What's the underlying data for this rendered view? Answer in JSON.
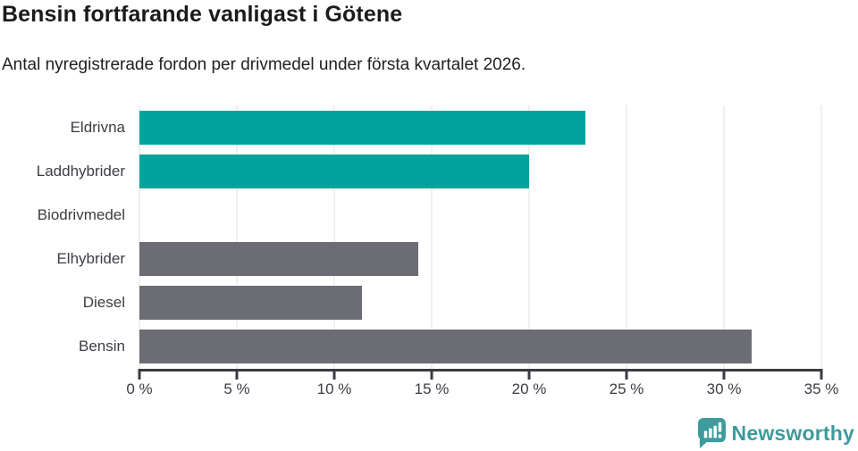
{
  "header": {
    "title": "Bensin fortfarande vanligast i Götene",
    "subtitle": "Antal nyregistrerade fordon per drivmedel under första kvartalet 2026."
  },
  "chart_data": {
    "type": "bar",
    "orientation": "horizontal",
    "title": "Bensin fortfarande vanligast i Götene",
    "subtitle": "Antal nyregistrerade fordon per drivmedel under första kvartalet 2026.",
    "categories": [
      "Eldrivna",
      "Laddhybrider",
      "Biodrivmedel",
      "Elhybrider",
      "Diesel",
      "Bensin"
    ],
    "values": [
      22.9,
      20.0,
      0,
      14.3,
      11.4,
      31.4
    ],
    "unit": "%",
    "bar_colors": [
      "#00a49c",
      "#00a49c",
      "#6c6c74",
      "#6c6c74",
      "#6c6c74",
      "#6c6c74"
    ],
    "xlim": [
      0,
      35
    ],
    "x_tick_values": [
      0,
      5,
      10,
      15,
      20,
      25,
      30,
      35
    ],
    "x_tick_labels": [
      "0 %",
      "5 %",
      "10 %",
      "15 %",
      "20 %",
      "25 %",
      "30 %",
      "35 %"
    ],
    "grid": true,
    "gridline_color": "#e2e2e2",
    "axis_color": "#3b3b40",
    "label_color": "#3c3c43"
  },
  "footer": {
    "brand": "Newsworthy",
    "brand_color": "#3d9b9b",
    "logo_icon": "bar-chart-speech-bubble-icon"
  }
}
